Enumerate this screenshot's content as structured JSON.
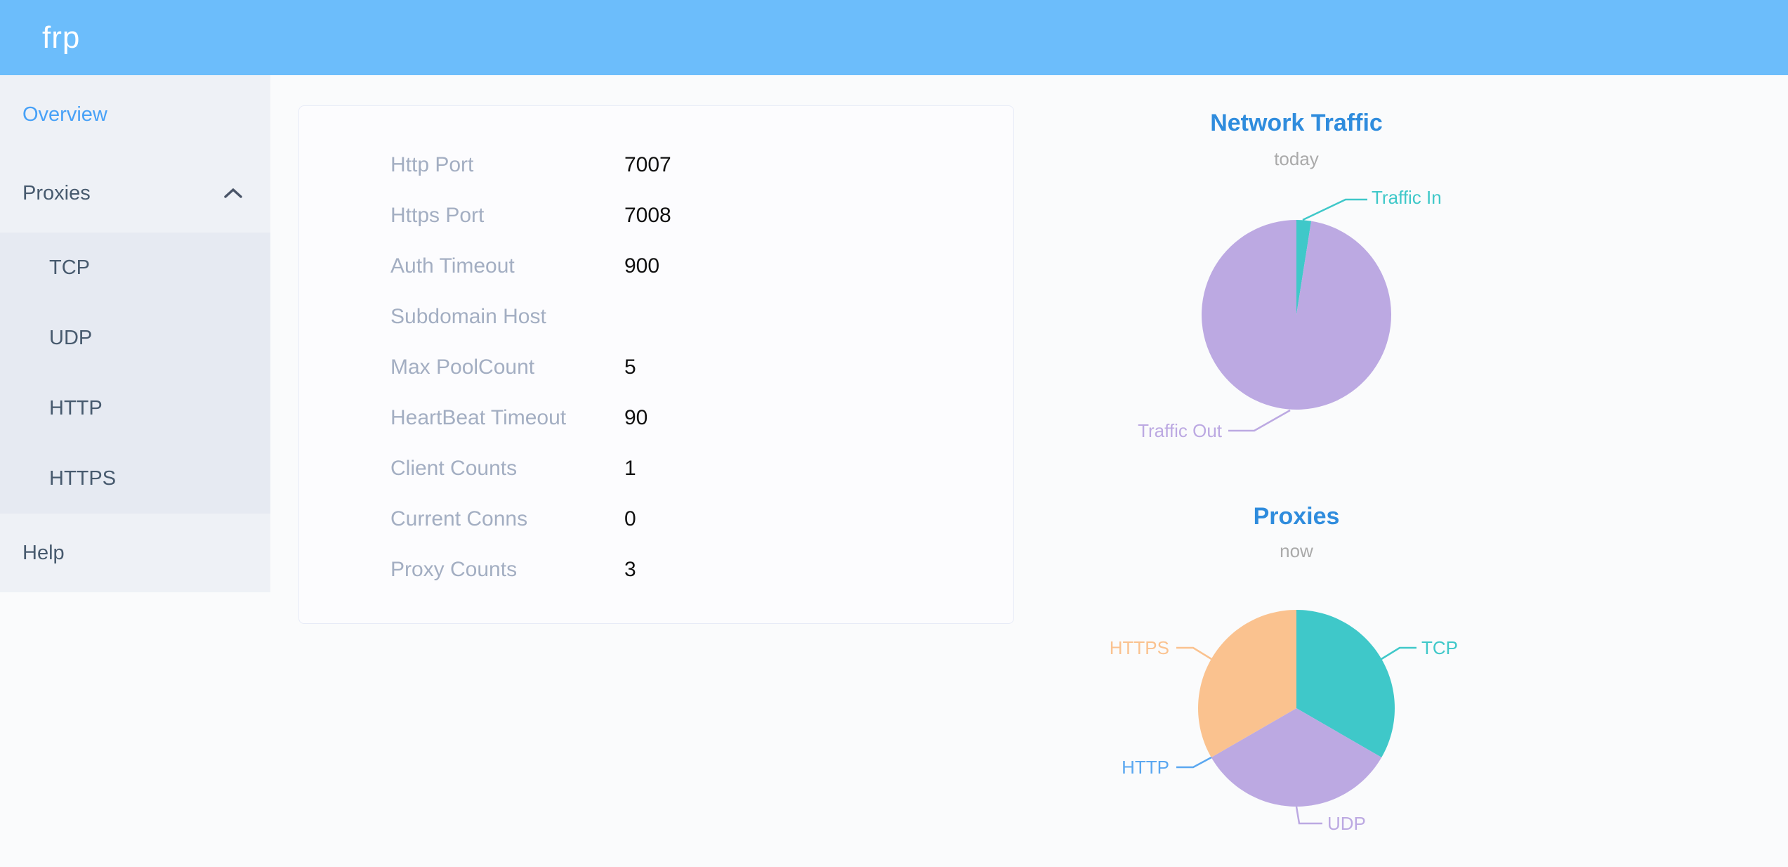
{
  "header": {
    "logo": "frp"
  },
  "sidebar": {
    "items": [
      {
        "label": "Overview",
        "active": true
      },
      {
        "label": "Proxies",
        "expanded": true,
        "children": [
          "TCP",
          "UDP",
          "HTTP",
          "HTTPS"
        ]
      },
      {
        "label": "Help"
      }
    ]
  },
  "overview_card": {
    "rows": [
      {
        "label": "Http Port",
        "value": "7007"
      },
      {
        "label": "Https Port",
        "value": "7008"
      },
      {
        "label": "Auth Timeout",
        "value": "900"
      },
      {
        "label": "Subdomain Host",
        "value": ""
      },
      {
        "label": "Max PoolCount",
        "value": "5"
      },
      {
        "label": "HeartBeat Timeout",
        "value": "90"
      },
      {
        "label": "Client Counts",
        "value": "1"
      },
      {
        "label": "Current Conns",
        "value": "0"
      },
      {
        "label": "Proxy Counts",
        "value": "3"
      }
    ]
  },
  "chart_data": [
    {
      "type": "pie",
      "title": "Network Traffic",
      "subtitle": "today",
      "legend_position": "none",
      "labels_on": "outside-with-leader-lines",
      "values_are": "estimated percent of circle",
      "slices": [
        {
          "label": "Traffic In",
          "value": 2.5,
          "color": "#3fc8c9"
        },
        {
          "label": "Traffic Out",
          "value": 97.5,
          "color": "#bca9e2"
        }
      ]
    },
    {
      "type": "pie",
      "title": "Proxies",
      "subtitle": "now",
      "legend_position": "none",
      "labels_on": "outside-with-leader-lines",
      "values_are": "proxy counts by type",
      "slices": [
        {
          "label": "TCP",
          "value": 1,
          "color": "#3fc8c9"
        },
        {
          "label": "UDP",
          "value": 1,
          "color": "#bca9e2"
        },
        {
          "label": "HTTP",
          "value": 0,
          "color": "#5aa7f0"
        },
        {
          "label": "HTTPS",
          "value": 1,
          "color": "#fac28f"
        }
      ]
    }
  ],
  "colors": {
    "header_bg": "#6cbdfb",
    "sidebar_bg": "#eef1f6",
    "submenu_bg": "#e6eaf2",
    "menu_text": "#475a6e",
    "menu_active": "#47a1f7",
    "card_border": "#e7ebf7",
    "config_label": "#a3aec2",
    "config_value": "#111111",
    "chart_title": "#2f8cdd",
    "chart_subtitle": "#aaaaaa",
    "page_bg": "#fafbfc"
  }
}
